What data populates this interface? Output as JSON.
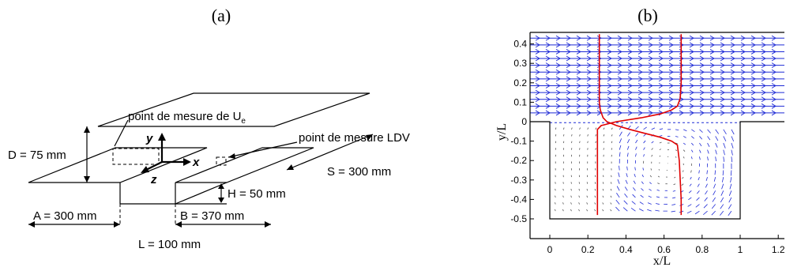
{
  "panel_a": {
    "label": "(a)",
    "labels": {
      "point_ue": "point de mesure de U",
      "point_ue_sub": "e",
      "point_ldv": "point de mesure LDV",
      "d": "D = 75 mm",
      "s": "S = 300 mm",
      "h": "H = 50 mm",
      "a": "A = 300 mm",
      "b": "B = 370 mm",
      "l": "L = 100 mm",
      "x": "x",
      "y": "y",
      "z": "z"
    }
  },
  "panel_b": {
    "label": "(b)",
    "xlabel": "x/L",
    "ylabel": "y/L",
    "xticks": [
      "0",
      "0.2",
      "0.4",
      "0.6",
      "0.8",
      "1",
      "1.2"
    ],
    "yticks": [
      "0.4",
      "0.3",
      "0.2",
      "0.1",
      "0",
      "-0.1",
      "-0.2",
      "-0.3",
      "-0.4",
      "-0.5"
    ]
  },
  "chart_data": {
    "type": "line",
    "title": "",
    "xlim": [
      -0.1,
      1.25
    ],
    "ylim": [
      -0.55,
      0.45
    ],
    "grid": false,
    "series": [
      {
        "x": [
          0.26,
          0.26,
          0.26,
          0.26,
          0.265,
          0.28,
          0.3,
          0.35,
          0.42,
          0.5,
          0.58,
          0.64,
          0.67,
          0.68,
          0.685,
          0.69,
          0.69
        ],
        "y": [
          0.45,
          0.3,
          0.15,
          0.1,
          0.06,
          0.02,
          0.0,
          -0.02,
          -0.04,
          -0.06,
          -0.08,
          -0.1,
          -0.12,
          -0.2,
          -0.3,
          -0.4,
          -0.48
        ]
      },
      {
        "x": [
          0.25,
          0.25,
          0.25,
          0.25,
          0.25,
          0.27,
          0.35,
          0.48,
          0.58,
          0.64,
          0.67,
          0.685,
          0.69,
          0.69,
          0.69,
          0.69
        ],
        "y": [
          -0.48,
          -0.35,
          -0.2,
          -0.1,
          -0.04,
          -0.02,
          0.0,
          0.02,
          0.04,
          0.06,
          0.08,
          0.12,
          0.2,
          0.3,
          0.4,
          0.45
        ]
      }
    ]
  }
}
